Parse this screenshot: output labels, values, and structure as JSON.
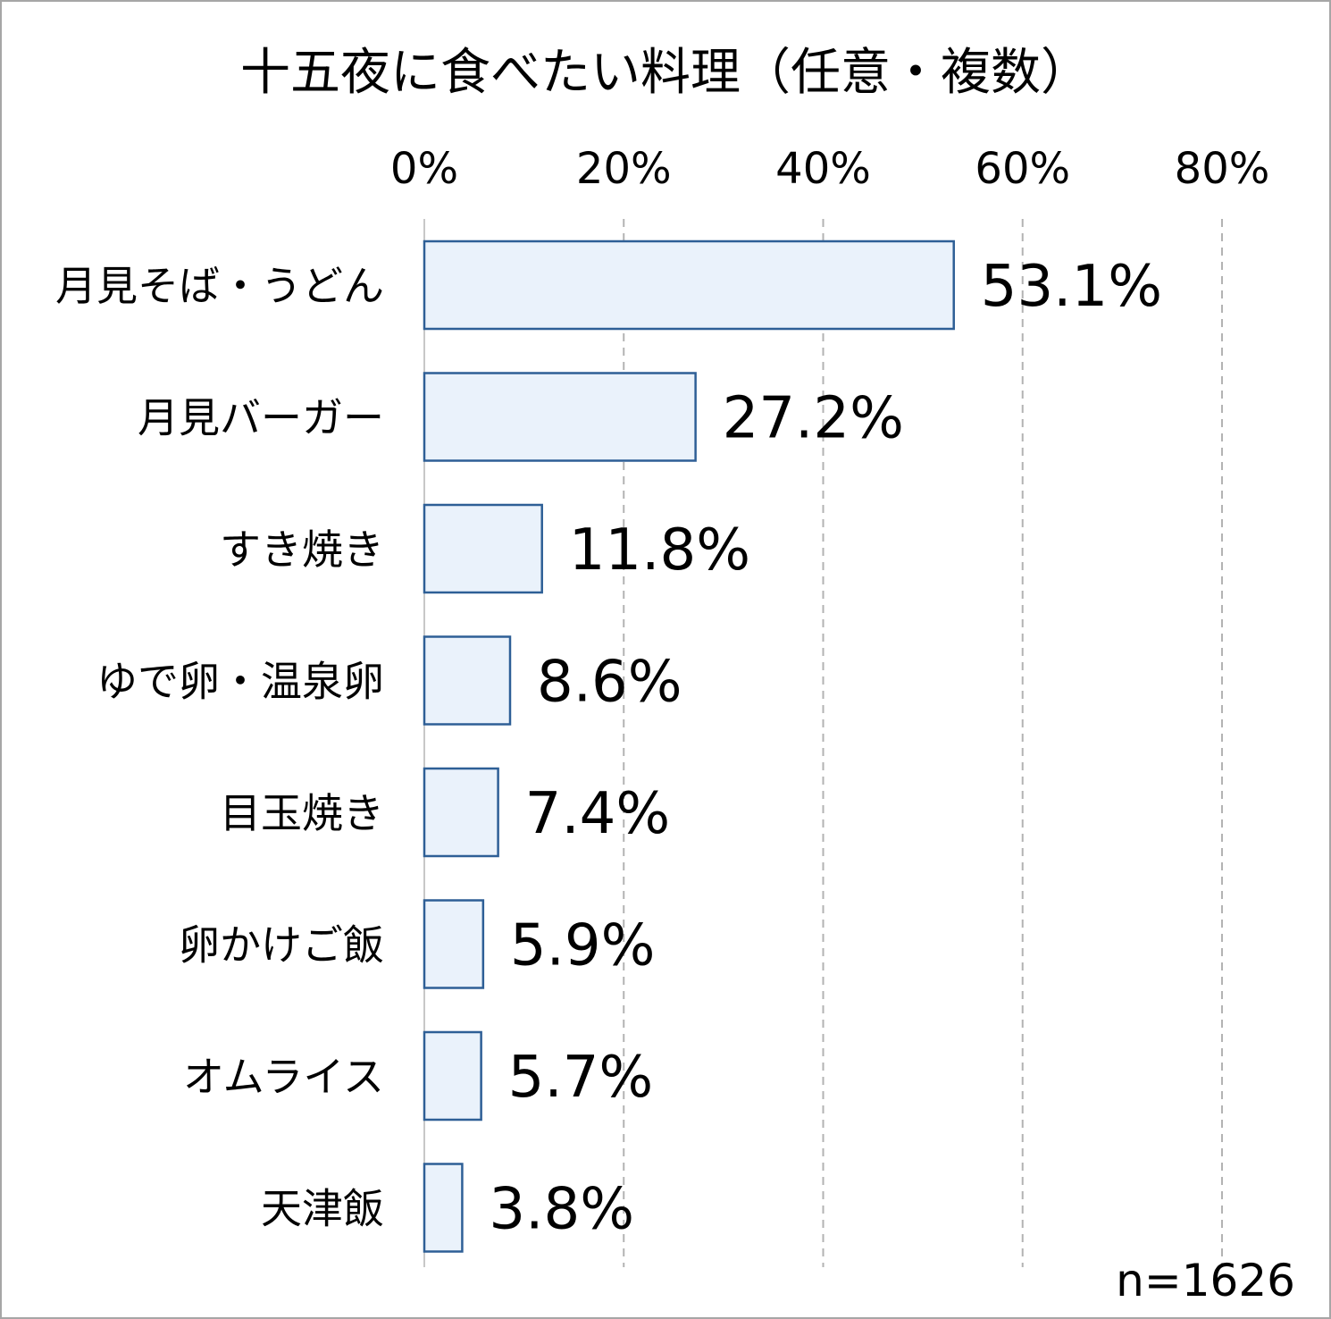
{
  "chart_data": {
    "type": "bar",
    "orientation": "horizontal",
    "title": "十五夜に食べたい料理（任意・複数）",
    "categories": [
      "月見そば・うどん",
      "月見バーガー",
      "すき焼き",
      "ゆで卵・温泉卵",
      "目玉焼き",
      "卵かけご飯",
      "オムライス",
      "天津飯"
    ],
    "values": [
      53.1,
      27.2,
      11.8,
      8.6,
      7.4,
      5.9,
      5.7,
      3.8
    ],
    "value_labels": [
      "53.1%",
      "27.2%",
      "11.8%",
      "8.6%",
      "7.4%",
      "5.9%",
      "5.7%",
      "3.8%"
    ],
    "xlim": [
      0,
      80
    ],
    "xticks": [
      "0%",
      "20%",
      "40%",
      "60%",
      "80%"
    ],
    "xaxis_position": "top",
    "grid": "dashed vertical",
    "note": "n=1626",
    "colors": {
      "bar_fill": "#eaf2fb",
      "bar_stroke": "#2e5f96",
      "grid": "#b3b3b3",
      "frame": "#a6a6a6"
    }
  }
}
